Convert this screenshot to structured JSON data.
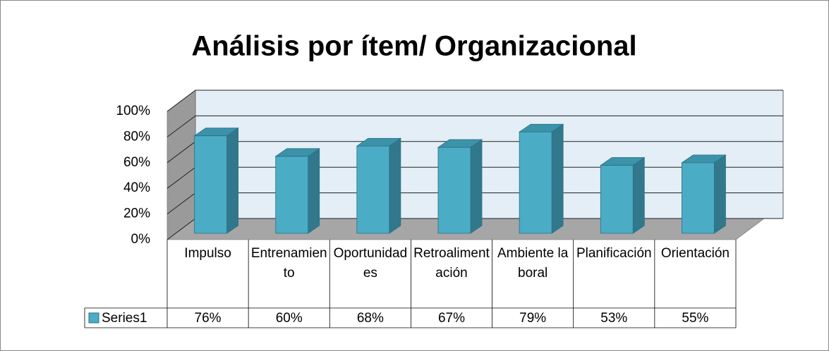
{
  "chart_data": {
    "type": "bar3d",
    "title": "Análisis por ítem/ Organizacional",
    "categories": [
      "Impulso",
      "Entrenamiento",
      "Oportunidades",
      "Retroalimentación",
      "Ambiente laboral",
      "Planificación",
      "Orientación"
    ],
    "series": [
      {
        "name": "Series1",
        "color": "#4bacc6",
        "values": [
          76,
          60,
          68,
          67,
          79,
          53,
          55
        ],
        "value_labels": [
          "76%",
          "60%",
          "68%",
          "67%",
          "79%",
          "53%",
          "55%"
        ]
      }
    ],
    "ylim": [
      0,
      100
    ],
    "yticks": [
      {
        "value": 0,
        "label": "0%"
      },
      {
        "value": 20,
        "label": "20%"
      },
      {
        "value": 40,
        "label": "40%"
      },
      {
        "value": 60,
        "label": "60%"
      },
      {
        "value": 80,
        "label": "80%"
      },
      {
        "value": 100,
        "label": "100%"
      }
    ],
    "grid": true,
    "data_table": true
  }
}
